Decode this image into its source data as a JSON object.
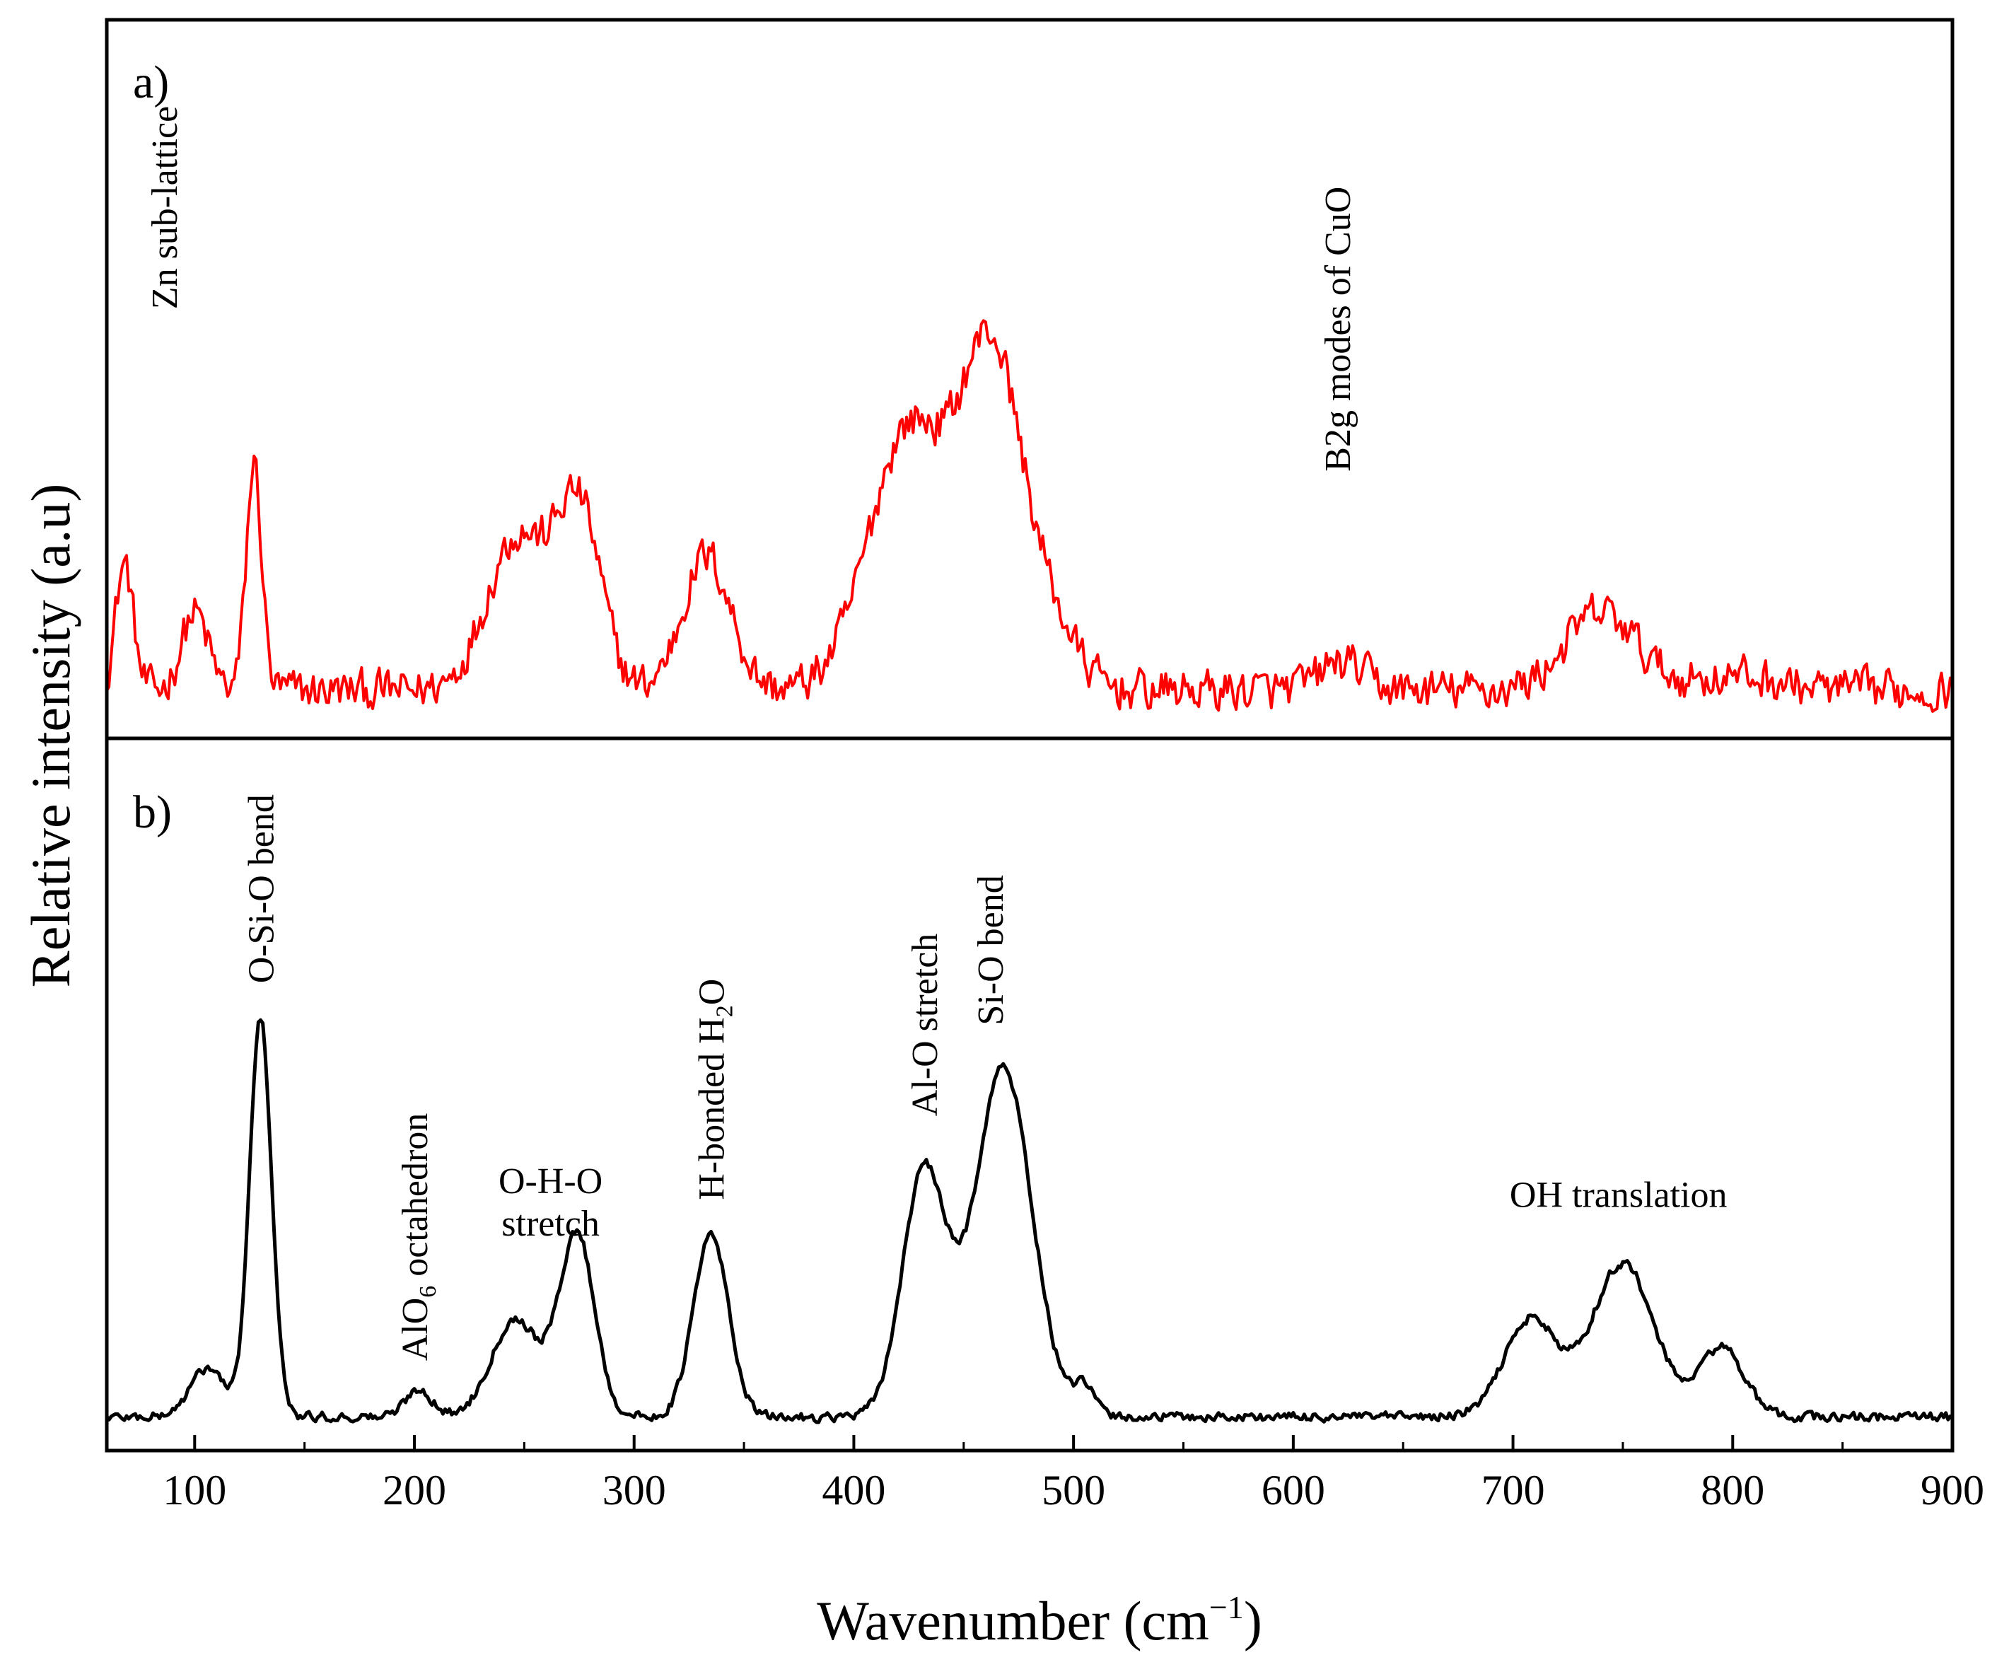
{
  "chart_data": {
    "type": "line",
    "xlabel": {
      "base": "Wavenumber (cm",
      "sup": "−1",
      "close": ")"
    },
    "ylabel": "Relative intensity (a.u)",
    "xlim": [
      60,
      900
    ],
    "x_ticks": [
      100,
      200,
      300,
      400,
      500,
      600,
      700,
      800,
      900
    ],
    "panels": [
      {
        "tag": "a)",
        "color": "#ff0000",
        "ylim": [
          0,
          100
        ],
        "series_name": "a) spectrum",
        "noise": 2.6,
        "baseline": 6,
        "peaks": [
          {
            "x": 68,
            "h": 18,
            "w": 4
          },
          {
            "x": 100,
            "h": 11,
            "w": 6
          },
          {
            "x": 127,
            "h": 32,
            "w": 3.5
          },
          {
            "x": 247,
            "h": 22,
            "w": 14
          },
          {
            "x": 275,
            "h": 25,
            "w": 10
          },
          {
            "x": 333,
            "h": 19,
            "w": 11
          },
          {
            "x": 425,
            "h": 37,
            "w": 18
          },
          {
            "x": 463,
            "h": 46,
            "w": 14
          },
          {
            "x": 490,
            "h": 8,
            "w": 12
          },
          {
            "x": 622,
            "h": 4,
            "w": 10
          },
          {
            "x": 740,
            "h": 11,
            "w": 16
          },
          {
            "x": 800,
            "h": 2,
            "w": 20
          }
        ],
        "annotations": [
          {
            "id": "zn-sub-lattice",
            "label": "Zn sub-lattice",
            "x": 86,
            "y": 60,
            "rotate": true
          },
          {
            "id": "b2g-modes-cuo",
            "label": "B2g modes of CuO",
            "x": 620,
            "y": 37,
            "rotate": true
          }
        ]
      },
      {
        "tag": "b)",
        "color": "#000000",
        "ylim": [
          0,
          100
        ],
        "series_name": "b) spectrum",
        "noise": 0.6,
        "baseline": 4,
        "peaks": [
          {
            "x": 106,
            "h": 7,
            "w": 8
          },
          {
            "x": 130,
            "h": 57,
            "w": 5
          },
          {
            "x": 202,
            "h": 4,
            "w": 6
          },
          {
            "x": 246,
            "h": 14,
            "w": 11
          },
          {
            "x": 274,
            "h": 26,
            "w": 8
          },
          {
            "x": 335,
            "h": 26,
            "w": 8
          },
          {
            "x": 432,
            "h": 35,
            "w": 10
          },
          {
            "x": 468,
            "h": 50,
            "w": 13
          },
          {
            "x": 505,
            "h": 4,
            "w": 5
          },
          {
            "x": 708,
            "h": 14,
            "w": 12
          },
          {
            "x": 750,
            "h": 22,
            "w": 14
          },
          {
            "x": 795,
            "h": 10,
            "w": 10
          }
        ],
        "annotations": [
          {
            "id": "o-si-o-bend",
            "label": "O-Si-O bend",
            "x": 130,
            "y": 66,
            "rotate": true
          },
          {
            "id": "alo6-octahedron",
            "label": "AlO",
            "sub": "6",
            "label2": " octahedron",
            "x": 200,
            "y": 12,
            "rotate": true
          },
          {
            "id": "o-h-o-stretch",
            "label": "O-H-O",
            "label2": "stretch",
            "x": 262,
            "y": 36,
            "rotate": false
          },
          {
            "id": "h-bonded-h2o",
            "label": "H-bonded H",
            "sub": "2",
            "label2": "O",
            "x": 335,
            "y": 35,
            "rotate": true
          },
          {
            "id": "al-o-stretch",
            "label": "Al-O stretch",
            "x": 432,
            "y": 47,
            "rotate": true
          },
          {
            "id": "si-o-bend",
            "label": "Si-O bend",
            "x": 462,
            "y": 60,
            "rotate": true
          },
          {
            "id": "oh-translation",
            "label": "OH translation",
            "x": 748,
            "y": 34,
            "rotate": false
          }
        ]
      }
    ]
  }
}
